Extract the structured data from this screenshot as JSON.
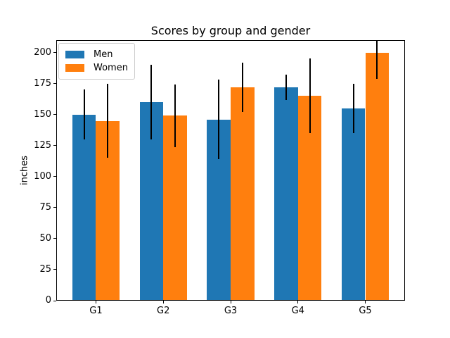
{
  "figure": {
    "title": "Scores by group and gender",
    "ylabel": "inches"
  },
  "chart_data": {
    "type": "bar",
    "title": "Scores by group and gender",
    "xlabel": "",
    "ylabel": "inches",
    "categories": [
      "G1",
      "G2",
      "G3",
      "G4",
      "G5"
    ],
    "series": [
      {
        "name": "Men",
        "color": "#1f77b4",
        "values": [
          150,
          160,
          146,
          172,
          155
        ],
        "errors": [
          20,
          30,
          32,
          10,
          20
        ]
      },
      {
        "name": "Women",
        "color": "#ff7f0e",
        "values": [
          145,
          149,
          172,
          165,
          200
        ],
        "errors": [
          30,
          25,
          20,
          30,
          21
        ]
      }
    ],
    "error_bar_color": "#000000",
    "bar_width_units": 0.35,
    "ylim": [
      0,
      210
    ],
    "xlim": [
      -0.59,
      4.59
    ],
    "yticks": [
      0,
      25,
      50,
      75,
      100,
      125,
      150,
      175,
      200
    ],
    "grid": false,
    "legend_position": "upper left"
  }
}
